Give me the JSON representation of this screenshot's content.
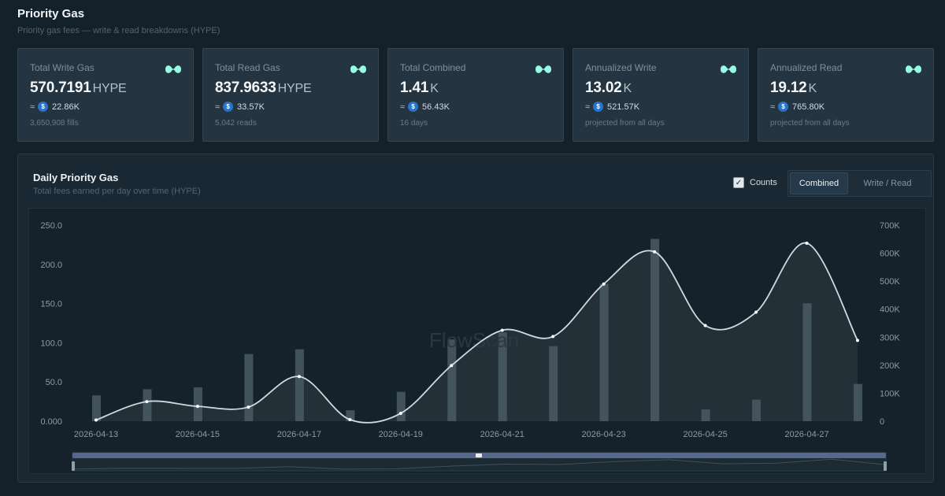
{
  "header": {
    "title": "Priority Gas",
    "subtitle": "Priority gas fees — write & read breakdowns (HYPE)"
  },
  "stats": [
    {
      "label": "Total Write Gas",
      "value": "570.7191",
      "unit": "HYPE",
      "approx": "≈",
      "usd": "22.86K",
      "note": "3,650,908 fills"
    },
    {
      "label": "Total Read Gas",
      "value": "837.9633",
      "unit": "HYPE",
      "approx": "≈",
      "usd": "33.57K",
      "note": "5,042 reads"
    },
    {
      "label": "Total Combined",
      "value": "1.41",
      "unit": "K",
      "approx": "≈",
      "usd": "56.43K",
      "note": "16 days"
    },
    {
      "label": "Annualized Write",
      "value": "13.02",
      "unit": "K",
      "approx": "≈",
      "usd": "521.57K",
      "note": "projected from all days"
    },
    {
      "label": "Annualized Read",
      "value": "19.12",
      "unit": "K",
      "approx": "≈",
      "usd": "765.80K",
      "note": "projected from all days"
    }
  ],
  "chart_panel": {
    "title": "Daily Priority Gas",
    "subtitle": "Total fees earned per day over time (HYPE)",
    "counts_label": "Counts",
    "counts_checked": true,
    "view_tabs": [
      {
        "label": "Combined",
        "active": true
      },
      {
        "label": "Write / Read",
        "active": false
      }
    ],
    "watermark": "FlowScan"
  },
  "colors": {
    "accent_logo": "#97fce4",
    "line": "#cfd9e0",
    "bar": "#4a5a63",
    "area": "#26323b",
    "usd_icon": "#2775ca"
  },
  "chart_data": {
    "type": "line",
    "title": "",
    "xlabel": "",
    "ylabel": "",
    "x": [
      "2026-04-13",
      "2026-04-14",
      "2026-04-15",
      "2026-04-16",
      "2026-04-17",
      "2026-04-18",
      "2026-04-19",
      "2026-04-20",
      "2026-04-21",
      "2026-04-22",
      "2026-04-23",
      "2026-04-24",
      "2026-04-25",
      "2026-04-26",
      "2026-04-27",
      "2026-04-28"
    ],
    "x_tick_labels": [
      "2026-04-13",
      "2026-04-15",
      "2026-04-17",
      "2026-04-19",
      "2026-04-21",
      "2026-04-23",
      "2026-04-25",
      "2026-04-27"
    ],
    "ylim": [
      0,
      250
    ],
    "y_ticks": [
      "0.000",
      "50.0",
      "100.0",
      "150.0",
      "200.0",
      "250.0"
    ],
    "y2lim": [
      0,
      700000
    ],
    "y2_ticks": [
      "0",
      "100K",
      "200K",
      "300K",
      "400K",
      "500K",
      "600K",
      "700K"
    ],
    "series": [
      {
        "axis": "left",
        "kind": "line-area",
        "values": [
          1.5,
          25,
          19,
          18,
          57,
          2,
          10,
          71,
          116,
          108,
          175,
          216,
          122,
          139,
          227,
          103
        ]
      },
      {
        "axis": "right",
        "kind": "bar",
        "values": [
          92000,
          114000,
          121000,
          240000,
          257000,
          39000,
          105000,
          292000,
          317000,
          268000,
          490000,
          651000,
          42000,
          77000,
          421000,
          133000
        ]
      }
    ],
    "grid": false,
    "legend": "none",
    "range_slider": true
  }
}
